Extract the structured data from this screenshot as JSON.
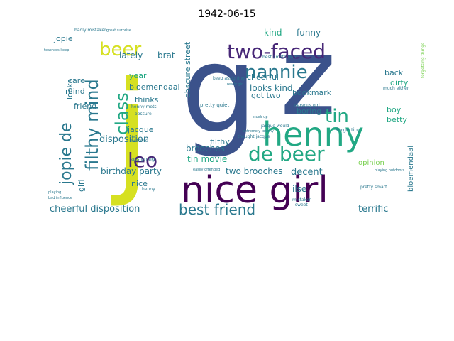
{
  "title": "1942-06-15",
  "colors": {
    "background": "#ffffff",
    "yellow": "#d6e021",
    "green": "#22a884",
    "teal": "#2a788e",
    "blue": "#3b528b",
    "purple": "#440154",
    "violet": "#482878",
    "lime": "#7ad151"
  },
  "words": [
    "j",
    "g",
    "z",
    "henny",
    "nice girl",
    "best friend",
    "de beer",
    "two-faced",
    "nannie",
    "tin",
    "beer",
    "leo",
    "class",
    "filthy mind",
    "jopie de",
    "disposition",
    "cheerful disposition",
    "birthday party",
    "tin movie",
    "two brooches",
    "brooches",
    "filthy",
    "decent",
    "terrific",
    "opinion",
    "jacque",
    "nice",
    "girl",
    "friend",
    "mind",
    "care",
    "looks",
    "year",
    "lately",
    "brat",
    "bloemendaal",
    "thinks",
    "obscure street",
    "kind",
    "funny",
    "looks kind",
    "got two",
    "cheerful",
    "bookmark",
    "boring",
    "ilse",
    "boy",
    "betty",
    "back",
    "dirty",
    "jopie",
    "badly mistaken",
    "great surprise",
    "teachers keep",
    "henny mets",
    "buttons",
    "obscure",
    "assigning",
    "keep assigning",
    "pretty quiet",
    "best amsterdam",
    "nervous girl",
    "much either",
    "forgetting",
    "forgetting things",
    "stuck-up",
    "extremely touchy",
    "easily offended",
    "playing outdoors",
    "playing",
    "mistaken",
    "sweet",
    "pretty smart",
    "really girl",
    "jacque would",
    "thought jacque",
    "bad influence",
    "henny",
    "bloemendaal"
  ]
}
